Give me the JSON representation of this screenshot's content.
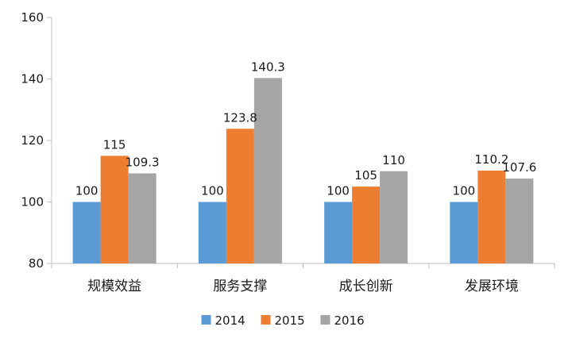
{
  "chart_data": {
    "type": "bar",
    "title": "",
    "xlabel": "",
    "ylabel": "",
    "categories": [
      "规模效益",
      "服务支撑",
      "成长创新",
      "发展环境"
    ],
    "series": [
      {
        "name": "2014",
        "color": "#5b9bd5",
        "values": [
          100,
          100,
          100,
          100
        ],
        "labels": [
          "100",
          "100",
          "100",
          "100"
        ]
      },
      {
        "name": "2015",
        "color": "#ed7d31",
        "values": [
          115,
          123.8,
          105,
          110.2
        ],
        "labels": [
          "115",
          "123.8",
          "105",
          "110.2"
        ]
      },
      {
        "name": "2016",
        "color": "#a5a5a5",
        "values": [
          109.3,
          140.3,
          110,
          107.6
        ],
        "labels": [
          "109.3",
          "140.3",
          "110",
          "107.6"
        ]
      }
    ],
    "ylim": [
      80,
      160
    ],
    "yticks": [
      80,
      100,
      120,
      140,
      160
    ],
    "grid": false,
    "legend_position": "bottom"
  }
}
